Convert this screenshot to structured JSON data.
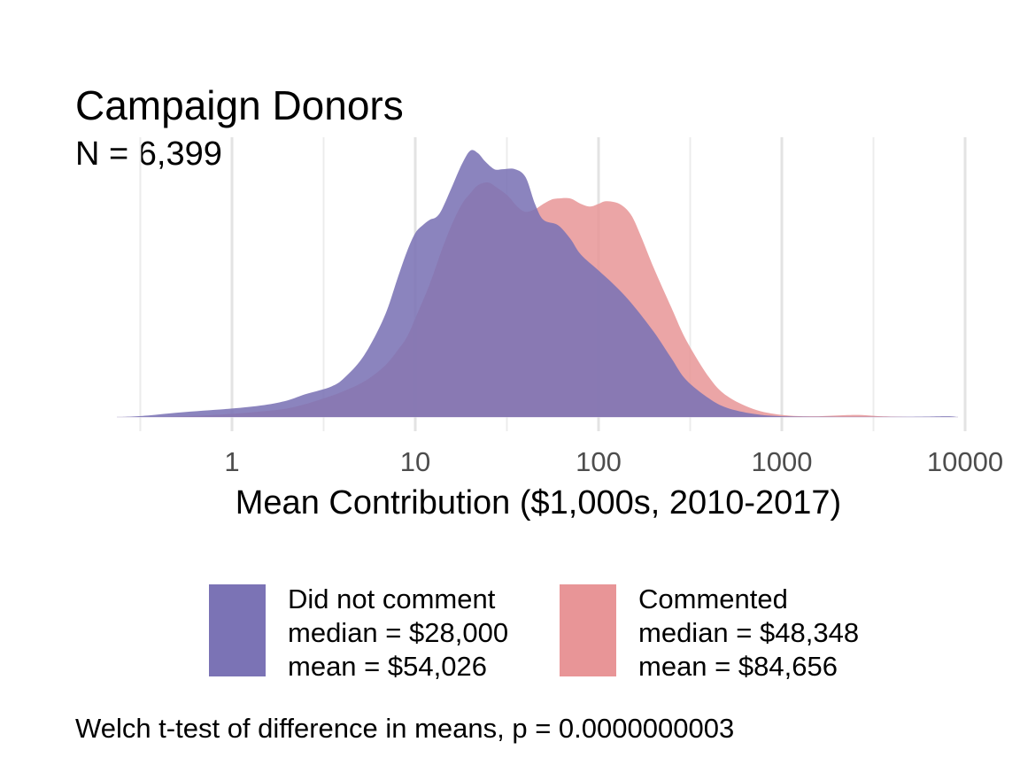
{
  "chart_data": {
    "type": "area",
    "title": "Campaign Donors",
    "subtitle": "N = 6,399",
    "xlabel": "Mean Contribution ($1,000s, 2010-2017)",
    "ylabel": "",
    "x_scale": "log10",
    "xlim": [
      0.25,
      10000
    ],
    "x_ticks": [
      1,
      10,
      100,
      1000,
      10000
    ],
    "x_tick_labels": [
      "1",
      "10",
      "100",
      "1000",
      "10000"
    ],
    "y_ticks_shown": false,
    "grid": "vertical major and minor",
    "legend_position": "bottom",
    "series": [
      {
        "key": "did-not-comment",
        "legend": [
          "Did not comment",
          "median = $28,000",
          "mean = $54,026"
        ],
        "color": "#7b73b5",
        "points": [
          [
            0.25,
            0.0
          ],
          [
            0.35,
            0.006
          ],
          [
            0.5,
            0.016
          ],
          [
            0.7,
            0.024
          ],
          [
            1.0,
            0.032
          ],
          [
            1.5,
            0.045
          ],
          [
            2.0,
            0.062
          ],
          [
            2.5,
            0.085
          ],
          [
            3.0,
            0.1
          ],
          [
            3.5,
            0.115
          ],
          [
            4.0,
            0.14
          ],
          [
            5.0,
            0.21
          ],
          [
            6.0,
            0.3
          ],
          [
            7.0,
            0.4
          ],
          [
            8.0,
            0.52
          ],
          [
            9.0,
            0.62
          ],
          [
            10.0,
            0.69
          ],
          [
            11.0,
            0.72
          ],
          [
            12.0,
            0.74
          ],
          [
            13.0,
            0.75
          ],
          [
            14.0,
            0.78
          ],
          [
            16.0,
            0.87
          ],
          [
            18.0,
            0.95
          ],
          [
            20.0,
            1.0
          ],
          [
            22.0,
            0.99
          ],
          [
            24.0,
            0.96
          ],
          [
            27.0,
            0.93
          ],
          [
            30.0,
            0.93
          ],
          [
            35.0,
            0.93
          ],
          [
            40.0,
            0.9
          ],
          [
            45.0,
            0.8
          ],
          [
            50.0,
            0.74
          ],
          [
            60.0,
            0.72
          ],
          [
            70.0,
            0.67
          ],
          [
            80.0,
            0.61
          ],
          [
            100.0,
            0.55
          ],
          [
            120.0,
            0.5
          ],
          [
            150.0,
            0.43
          ],
          [
            200.0,
            0.32
          ],
          [
            250.0,
            0.22
          ],
          [
            300.0,
            0.14
          ],
          [
            400.0,
            0.07
          ],
          [
            500.0,
            0.035
          ],
          [
            700.0,
            0.012
          ],
          [
            1000.0,
            0.003
          ],
          [
            2000.0,
            0.001
          ],
          [
            5000.0,
            0.001
          ],
          [
            8000.0,
            0.003
          ],
          [
            9000.0,
            0.0
          ]
        ]
      },
      {
        "key": "commented",
        "legend": [
          "Commented",
          "median = $48,348",
          "mean = $84,656"
        ],
        "color": "#e89597",
        "points": [
          [
            0.4,
            0.0
          ],
          [
            0.7,
            0.006
          ],
          [
            1.0,
            0.012
          ],
          [
            1.5,
            0.022
          ],
          [
            2.0,
            0.032
          ],
          [
            2.5,
            0.048
          ],
          [
            3.0,
            0.065
          ],
          [
            3.5,
            0.08
          ],
          [
            4.0,
            0.095
          ],
          [
            5.0,
            0.125
          ],
          [
            6.0,
            0.16
          ],
          [
            7.0,
            0.2
          ],
          [
            8.0,
            0.25
          ],
          [
            9.0,
            0.3
          ],
          [
            10.0,
            0.37
          ],
          [
            12.0,
            0.5
          ],
          [
            14.0,
            0.63
          ],
          [
            16.0,
            0.73
          ],
          [
            18.0,
            0.8
          ],
          [
            20.0,
            0.84
          ],
          [
            22.0,
            0.87
          ],
          [
            25.0,
            0.88
          ],
          [
            28.0,
            0.86
          ],
          [
            32.0,
            0.83
          ],
          [
            36.0,
            0.79
          ],
          [
            40.0,
            0.77
          ],
          [
            45.0,
            0.78
          ],
          [
            50.0,
            0.8
          ],
          [
            55.0,
            0.815
          ],
          [
            60.0,
            0.82
          ],
          [
            70.0,
            0.82
          ],
          [
            80.0,
            0.8
          ],
          [
            90.0,
            0.79
          ],
          [
            100.0,
            0.8
          ],
          [
            110.0,
            0.81
          ],
          [
            130.0,
            0.8
          ],
          [
            150.0,
            0.76
          ],
          [
            170.0,
            0.68
          ],
          [
            200.0,
            0.56
          ],
          [
            250.0,
            0.41
          ],
          [
            300.0,
            0.29
          ],
          [
            400.0,
            0.15
          ],
          [
            500.0,
            0.08
          ],
          [
            700.0,
            0.03
          ],
          [
            1000.0,
            0.008
          ],
          [
            1500.0,
            0.003
          ],
          [
            2500.0,
            0.008
          ],
          [
            3500.0,
            0.003
          ],
          [
            5000.0,
            0.0
          ]
        ]
      }
    ]
  },
  "caption": "Welch t-test of difference in means, p = 0.0000000003"
}
